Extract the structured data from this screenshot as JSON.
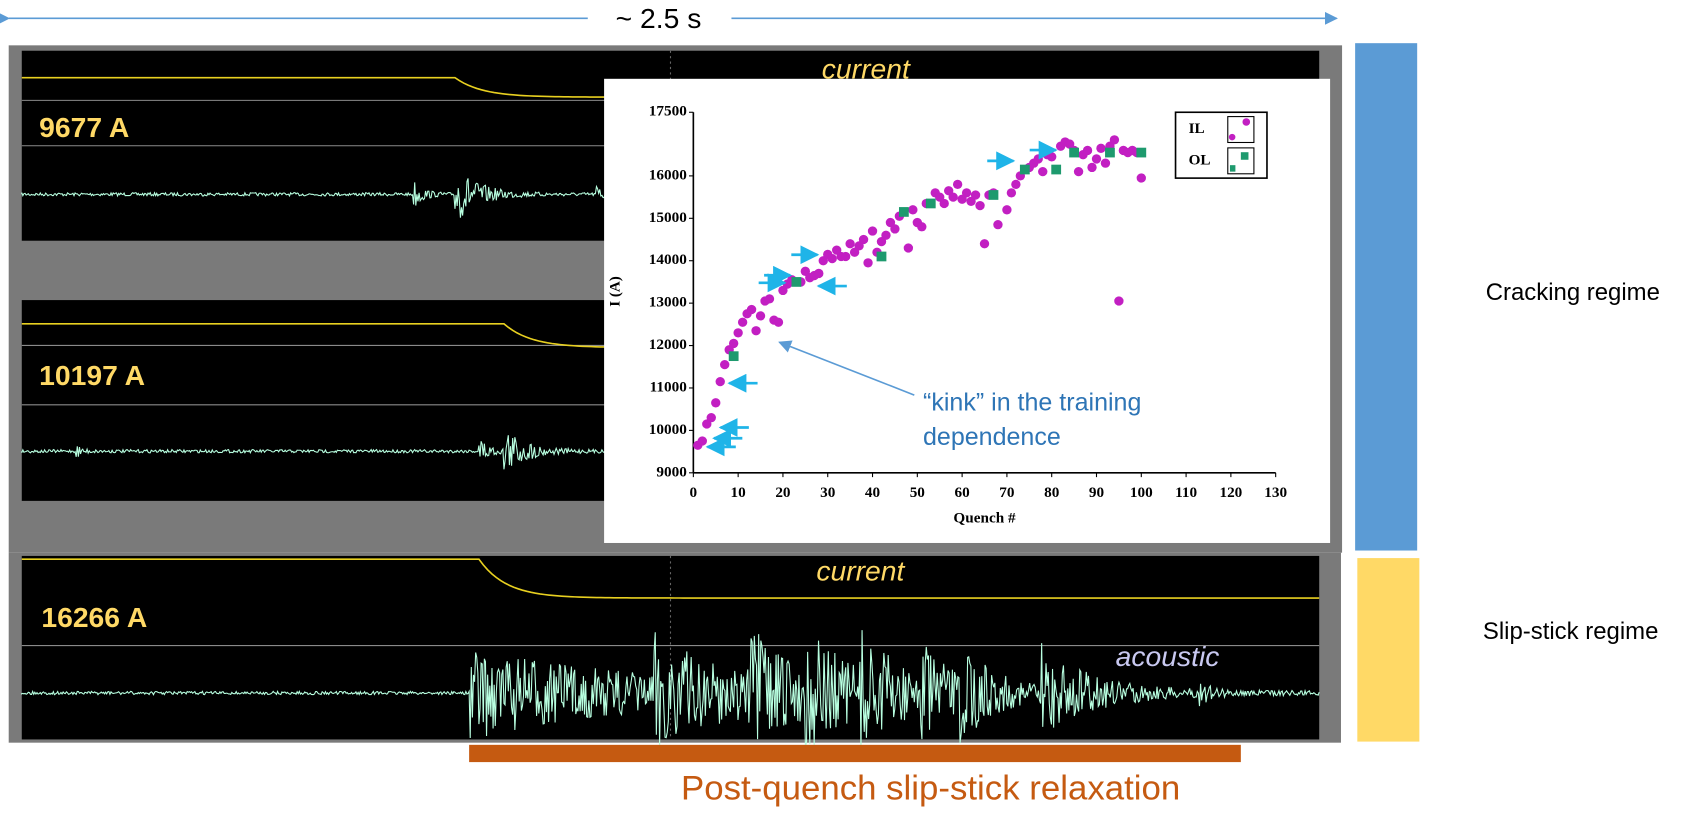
{
  "header": {
    "duration": "~ 2.5 s"
  },
  "traces": [
    {
      "label": "9677 A",
      "current_label": "current"
    },
    {
      "label": "10197 A"
    },
    {
      "label": "16266 A",
      "current_label": "current",
      "acoustic_label": "acoustic"
    }
  ],
  "regimes": [
    "Cracking regime",
    "Slip-stick regime"
  ],
  "footer": "Post-quench slip-stick relaxation",
  "chart_data": {
    "type": "scatter",
    "x_label": "Quench #",
    "y_label": "I (A)",
    "annotation": [
      "“kink” in the training",
      "dependence"
    ],
    "xlim": [
      0,
      130
    ],
    "ylim": [
      9000,
      17500
    ],
    "xticks": [
      0,
      10,
      20,
      30,
      40,
      50,
      60,
      70,
      80,
      90,
      100,
      110,
      120,
      130
    ],
    "yticks": [
      9000,
      10000,
      11000,
      12000,
      13000,
      14000,
      15000,
      16000,
      17500
    ],
    "legend": "top-right",
    "series": [
      {
        "name": "IL",
        "color": "#c21fc2",
        "marker": "circle",
        "x": [
          1,
          2,
          3,
          4,
          5,
          6,
          7,
          8,
          9,
          10,
          11,
          12,
          13,
          14,
          15,
          16,
          17,
          18,
          19,
          20,
          21,
          22,
          24,
          25,
          26,
          27,
          28,
          29,
          30,
          31,
          32,
          33,
          34,
          35,
          36,
          37,
          38,
          39,
          40,
          41,
          42,
          43,
          44,
          45,
          46,
          48,
          49,
          50,
          51,
          52,
          54,
          55,
          56,
          57,
          58,
          59,
          60,
          61,
          62,
          63,
          64,
          65,
          66,
          67,
          68,
          70,
          71,
          72,
          73,
          75,
          76,
          77,
          78,
          79,
          80,
          82,
          83,
          84,
          85,
          86,
          87,
          88,
          89,
          90,
          91,
          92,
          93,
          94,
          95,
          96,
          97,
          98,
          99,
          100
        ],
        "values": [
          9650,
          9750,
          10150,
          10300,
          10650,
          11150,
          11550,
          11900,
          12050,
          12300,
          12550,
          12750,
          12850,
          12350,
          12700,
          13050,
          13100,
          12600,
          12550,
          13300,
          13450,
          13550,
          13500,
          13750,
          13600,
          13650,
          13700,
          14000,
          14150,
          14050,
          14250,
          14100,
          14100,
          14400,
          14200,
          14350,
          14500,
          13950,
          14700,
          14200,
          14450,
          14600,
          14900,
          14750,
          15050,
          14300,
          15200,
          14900,
          14800,
          15350,
          15600,
          15500,
          15350,
          15650,
          15500,
          15800,
          15450,
          15600,
          15400,
          15550,
          15300,
          14400,
          15550,
          15600,
          14850,
          15200,
          15600,
          15800,
          16000,
          16200,
          16300,
          16400,
          16100,
          16500,
          16450,
          16700,
          16800,
          16750,
          16600,
          16100,
          16500,
          16600,
          16200,
          16400,
          16650,
          16300,
          16700,
          16850,
          13050,
          16600,
          16550,
          16600,
          16550,
          15950
        ]
      },
      {
        "name": "OL",
        "color": "#1e9a6e",
        "marker": "square",
        "x": [
          9,
          23,
          42,
          47,
          53,
          67,
          74,
          81,
          85,
          93,
          100
        ],
        "values": [
          11750,
          13500,
          14100,
          15150,
          15350,
          15550,
          16150,
          16150,
          16550,
          16550,
          16550
        ]
      }
    ]
  }
}
